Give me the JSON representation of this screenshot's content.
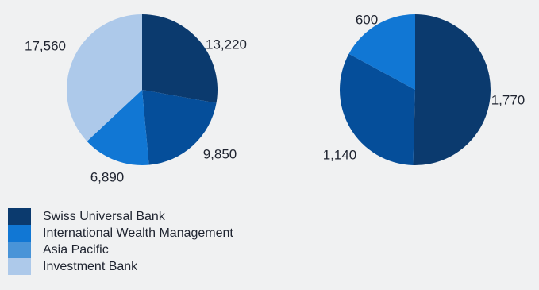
{
  "chart_data": [
    {
      "type": "pie",
      "categories": [
        "Swiss Universal Bank",
        "International Wealth Management",
        "Asia Pacific",
        "Investment Bank"
      ],
      "values": [
        13220,
        9850,
        6890,
        17560
      ],
      "data_labels": [
        "13,220",
        "9,850",
        "6,890",
        "17,560"
      ],
      "colors": [
        "#0b3a6e",
        "#054e9a",
        "#1177d4",
        "#adc9ea"
      ]
    },
    {
      "type": "pie",
      "categories": [
        "Swiss Universal Bank",
        "International Wealth Management",
        "Asia Pacific"
      ],
      "values": [
        1770,
        1140,
        600
      ],
      "data_labels": [
        "1,770",
        "1,140",
        "600"
      ],
      "colors": [
        "#0b3a6e",
        "#054e9a",
        "#1177d4"
      ]
    }
  ],
  "legend": {
    "items": [
      {
        "label": "Swiss Universal Bank",
        "color": "#0b3a6e"
      },
      {
        "label": "International Wealth Management",
        "color": "#1177d4"
      },
      {
        "label": "Asia Pacific",
        "color": "#4994d8"
      },
      {
        "label": "Investment Bank",
        "color": "#adc9ea"
      }
    ]
  }
}
